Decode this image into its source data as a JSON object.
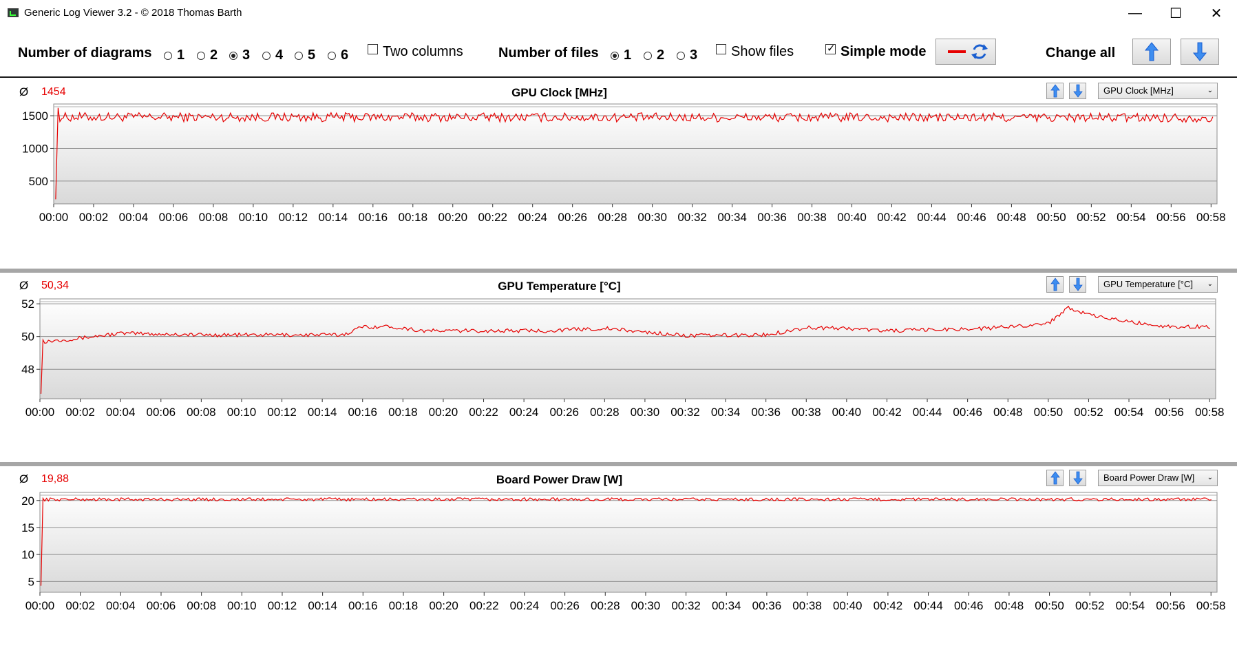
{
  "window": {
    "title": "Generic Log Viewer 3.2 - © 2018 Thomas Barth",
    "minimize": "—",
    "maximize": "☐",
    "close": "✕"
  },
  "toolbar": {
    "diagrams_label": "Number of diagrams",
    "diagram_options": [
      "1",
      "2",
      "3",
      "4",
      "5",
      "6"
    ],
    "diagram_selected": "3",
    "two_columns_label": "Two columns",
    "two_columns_checked": false,
    "files_label": "Number of files",
    "file_options": [
      "1",
      "2",
      "3"
    ],
    "file_selected": "1",
    "show_files_label": "Show files",
    "show_files_checked": false,
    "simple_mode_label": "Simple mode",
    "simple_mode_checked": true,
    "change_all_label": "Change all",
    "line_color": "#e60000"
  },
  "x_axis_ticks": [
    "00:00",
    "00:02",
    "00:04",
    "00:06",
    "00:08",
    "00:10",
    "00:12",
    "00:14",
    "00:16",
    "00:18",
    "00:20",
    "00:22",
    "00:24",
    "00:26",
    "00:28",
    "00:30",
    "00:32",
    "00:34",
    "00:36",
    "00:38",
    "00:40",
    "00:42",
    "00:44",
    "00:46",
    "00:48",
    "00:50",
    "00:52",
    "00:54",
    "00:56",
    "00:58"
  ],
  "panels": [
    {
      "avg_symbol": "Ø",
      "average": "1454",
      "title": "GPU Clock [MHz]",
      "selector": "GPU Clock [MHz]",
      "chart_data": {
        "type": "line",
        "x_unit": "minutes",
        "xlim": [
          0,
          58.3
        ],
        "ylim": [
          150,
          1680
        ],
        "y_ticks": [
          500,
          1000,
          1500
        ],
        "y_tick_labels": [
          "500",
          "1000",
          "1500"
        ],
        "grid": true,
        "series": [
          {
            "color": "#e60000",
            "start": [
              [
                0.1,
                220
              ],
              [
                0.22,
                1620
              ]
            ],
            "level": 1480,
            "noise": 70,
            "drift": [
              [
                0,
                1480
              ],
              [
                58,
                1470
              ]
            ]
          }
        ]
      }
    },
    {
      "avg_symbol": "Ø",
      "average": "50,34",
      "title": "GPU Temperature [°C]",
      "selector": "GPU Temperature [°C]",
      "chart_data": {
        "type": "line",
        "x_unit": "minutes",
        "xlim": [
          0,
          58.3
        ],
        "ylim": [
          46.2,
          52.3
        ],
        "y_ticks": [
          48,
          50,
          52
        ],
        "y_tick_labels": [
          "48",
          "50",
          "52"
        ],
        "grid": true,
        "series": [
          {
            "color": "#e60000",
            "start": [
              [
                0.05,
                46.5
              ],
              [
                0.15,
                49.8
              ]
            ],
            "level": 50.3,
            "noise": 0.12,
            "drift": [
              [
                0.2,
                49.7
              ],
              [
                2,
                49.9
              ],
              [
                4,
                50.2
              ],
              [
                8,
                50.1
              ],
              [
                15,
                50.1
              ],
              [
                16,
                50.6
              ],
              [
                17.5,
                50.6
              ],
              [
                19,
                50.35
              ],
              [
                25,
                50.35
              ],
              [
                28,
                50.5
              ],
              [
                32,
                50.05
              ],
              [
                36,
                50.1
              ],
              [
                38,
                50.55
              ],
              [
                40,
                50.5
              ],
              [
                42,
                50.35
              ],
              [
                47,
                50.5
              ],
              [
                50,
                50.8
              ],
              [
                51,
                51.8
              ],
              [
                52,
                51.3
              ],
              [
                54,
                50.9
              ],
              [
                56,
                50.6
              ],
              [
                58,
                50.6
              ]
            ]
          }
        ]
      }
    },
    {
      "avg_symbol": "Ø",
      "average": "19,88",
      "title": "Board Power Draw [W]",
      "selector": "Board Power Draw [W]",
      "chart_data": {
        "type": "line",
        "x_unit": "minutes",
        "xlim": [
          0,
          58.3
        ],
        "ylim": [
          3,
          21.5
        ],
        "y_ticks": [
          5,
          10,
          15,
          20
        ],
        "y_tick_labels": [
          "5",
          "10",
          "15",
          "20"
        ],
        "grid": true,
        "series": [
          {
            "color": "#e60000",
            "start": [
              [
                0.05,
                4.2
              ],
              [
                0.15,
                20.4
              ]
            ],
            "level": 20.2,
            "noise": 0.3,
            "drift": [
              [
                0,
                20.2
              ],
              [
                58,
                20.2
              ]
            ]
          }
        ]
      }
    }
  ]
}
